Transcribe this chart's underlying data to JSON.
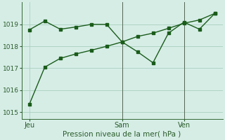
{
  "line1_x": [
    0,
    1,
    2,
    3,
    4,
    5,
    6,
    7,
    8,
    9,
    10,
    11,
    12
  ],
  "line1_y": [
    1018.75,
    1019.15,
    1018.78,
    1018.88,
    1019.0,
    1019.0,
    1018.2,
    1017.75,
    1017.25,
    1018.6,
    1019.1,
    1018.78,
    1019.5
  ],
  "line2_x": [
    0,
    1,
    2,
    3,
    4,
    5,
    6,
    7,
    8,
    9,
    10,
    11,
    12
  ],
  "line2_y": [
    1015.35,
    1017.05,
    1017.45,
    1017.65,
    1017.82,
    1018.0,
    1018.2,
    1018.45,
    1018.6,
    1018.82,
    1019.05,
    1019.2,
    1019.5
  ],
  "line_color": "#1a5c1a",
  "bg_color": "#d6ede6",
  "grid_color": "#aacfbf",
  "axis_color": "#336633",
  "text_color": "#2a5c2a",
  "ylim": [
    1014.7,
    1020.0
  ],
  "yticks": [
    1015,
    1016,
    1017,
    1018,
    1019
  ],
  "xlabel": "Pression niveau de la mer( hPa )",
  "xtick_positions": [
    0,
    6,
    10
  ],
  "xtick_labels": [
    "Jeu",
    "Sam",
    "Ven"
  ],
  "vline_positions": [
    6,
    10
  ],
  "marker_size": 2.5,
  "linewidth": 1.0
}
